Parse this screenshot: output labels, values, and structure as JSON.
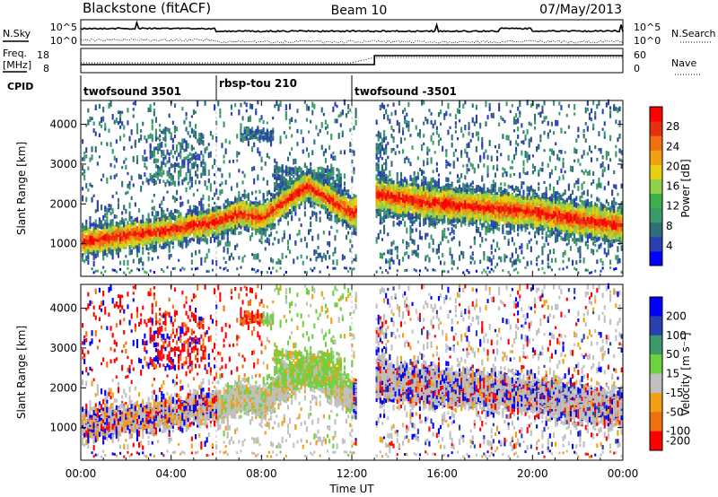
{
  "header": {
    "station": "Blackstone (fitACF)",
    "beam": "Beam 10",
    "date": "07/May/2013"
  },
  "side_labels": {
    "nsky": "N.Sky",
    "nsearch": "N.Search",
    "freq_line1": "Freq.",
    "freq_line2": "[MHz]",
    "nave": "Nave",
    "cpid": "CPID"
  },
  "noise_panel": {
    "ticks_left": [
      "10^5",
      "10^0"
    ],
    "ticks_right": [
      "10^5",
      "10^0"
    ]
  },
  "freq_panel": {
    "ticks_left": [
      "18",
      "8"
    ],
    "ticks_right": [
      "60",
      "0"
    ]
  },
  "cpid_segments": [
    {
      "start": 0,
      "end": 6,
      "label": "twofsound 3501"
    },
    {
      "start": 6,
      "end": 12,
      "label": "rbsp-tou 210"
    },
    {
      "start": 12,
      "end": 24,
      "label": "twofsound -3501"
    }
  ],
  "chart_data": [
    {
      "type": "heatmap",
      "panel": "power",
      "xlabel": "",
      "ylabel": "Slant Range [km]",
      "xlim": [
        0,
        24
      ],
      "ylim": [
        180,
        4600
      ],
      "yticks": [
        1000,
        2000,
        3000,
        4000
      ],
      "colorbar": {
        "label": "Power [dB]",
        "ticks": [
          4,
          8,
          12,
          16,
          20,
          24,
          28
        ],
        "range": [
          0,
          32
        ],
        "colors": [
          "#0000ff",
          "#2a3fb0",
          "#2f6f7a",
          "#3a9a6a",
          "#3cb04a",
          "#8fd04a",
          "#e6d010",
          "#f0a010",
          "#f07010",
          "#e83010",
          "#ff0000"
        ]
      },
      "main_echo_band": [
        {
          "x": 0.0,
          "y": 1050
        },
        {
          "x": 2.0,
          "y": 1200
        },
        {
          "x": 4.0,
          "y": 1350
        },
        {
          "x": 6.0,
          "y": 1550
        },
        {
          "x": 7.0,
          "y": 1750
        },
        {
          "x": 8.0,
          "y": 1650
        },
        {
          "x": 9.0,
          "y": 2050
        },
        {
          "x": 10.0,
          "y": 2450
        },
        {
          "x": 11.0,
          "y": 2100
        },
        {
          "x": 12.0,
          "y": 1750
        },
        {
          "x": 13.0,
          "y": 2250
        },
        {
          "x": 15.0,
          "y": 2050
        },
        {
          "x": 17.0,
          "y": 1950
        },
        {
          "x": 20.0,
          "y": 1800
        },
        {
          "x": 22.0,
          "y": 1600
        },
        {
          "x": 24.0,
          "y": 1450
        }
      ]
    },
    {
      "type": "heatmap",
      "panel": "velocity",
      "xlabel": "Time UT",
      "ylabel": "Slant Range [km]",
      "xlim": [
        0,
        24
      ],
      "ylim": [
        180,
        4600
      ],
      "xticks": [
        "00:00",
        "04:00",
        "08:00",
        "12:00",
        "16:00",
        "20:00",
        "00:00"
      ],
      "yticks": [
        1000,
        2000,
        3000,
        4000
      ],
      "colorbar": {
        "label": "Velocity [m s⁻¹]",
        "ticks": [
          200,
          100,
          50,
          15,
          -15,
          -50,
          -100,
          -200
        ],
        "colors": [
          "#0000ff",
          "#2a3fb0",
          "#3a9a6a",
          "#6fd040",
          "#c0c0c0",
          "#f0a010",
          "#f07010",
          "#ff0000"
        ]
      },
      "main_echo_band": [
        {
          "x": 0.0,
          "y": 1050
        },
        {
          "x": 2.0,
          "y": 1200
        },
        {
          "x": 4.0,
          "y": 1350
        },
        {
          "x": 6.0,
          "y": 1550
        },
        {
          "x": 7.0,
          "y": 1750
        },
        {
          "x": 8.0,
          "y": 1650
        },
        {
          "x": 9.0,
          "y": 2050
        },
        {
          "x": 10.0,
          "y": 2450
        },
        {
          "x": 11.0,
          "y": 2100
        },
        {
          "x": 12.0,
          "y": 1750
        },
        {
          "x": 13.0,
          "y": 2250
        },
        {
          "x": 15.0,
          "y": 2050
        },
        {
          "x": 17.0,
          "y": 1950
        },
        {
          "x": 20.0,
          "y": 1800
        },
        {
          "x": 22.0,
          "y": 1600
        },
        {
          "x": 24.0,
          "y": 1450
        }
      ]
    }
  ]
}
